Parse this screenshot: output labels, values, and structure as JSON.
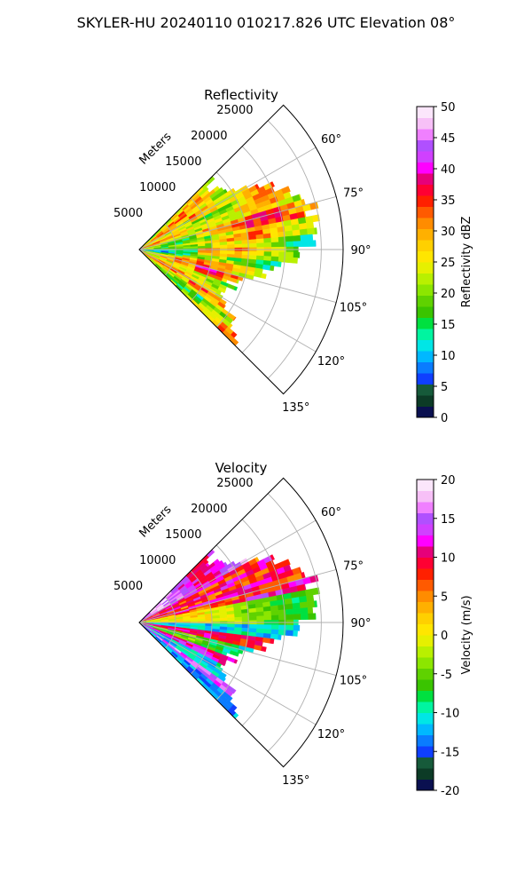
{
  "figure": {
    "suptitle": "SKYLER-HU  20240110  010217.826 UTC Elevation 08°"
  },
  "colors": {
    "reflectivity_scale": [
      "#0a1050",
      "#0c3b26",
      "#165a3a",
      "#0f3fff",
      "#0a7cff",
      "#00b8ff",
      "#00e6e6",
      "#00f5a0",
      "#00e040",
      "#3ac400",
      "#5fd200",
      "#8ce600",
      "#b9f000",
      "#e6f000",
      "#ffe600",
      "#ffd000",
      "#ffb000",
      "#ff8c00",
      "#ff5a00",
      "#ff2000",
      "#ff0033",
      "#e6007a",
      "#ff00ff",
      "#d040ff",
      "#b050ff",
      "#f080ff",
      "#f7c0f7",
      "#fbe6fb"
    ],
    "velocity_scale": [
      "#0a1050",
      "#0c3b26",
      "#165a3a",
      "#0f3fff",
      "#0a7cff",
      "#00b8ff",
      "#00e6e6",
      "#00f5a0",
      "#00e040",
      "#3ac400",
      "#5fd200",
      "#8ce600",
      "#b9f000",
      "#e6f000",
      "#ffe600",
      "#ffd000",
      "#ffb000",
      "#ff8c00",
      "#ff5a00",
      "#ff2000",
      "#ff0033",
      "#e6007a",
      "#ff00ff",
      "#d040ff",
      "#b050ff",
      "#f080ff",
      "#f7c0f7",
      "#fbe6fb"
    ],
    "grid": "#b0b0b0"
  },
  "chart_data": [
    {
      "type": "heatmap",
      "projection": "polar-sector",
      "title": "Reflectivity",
      "radial_label": "Meters",
      "radial_ticks": [
        5000,
        10000,
        15000,
        20000,
        25000
      ],
      "radial_tick_labels": [
        "5000",
        "10000",
        "15000",
        "20000",
        "25000"
      ],
      "rmax": 28000,
      "data_rmax": 25000,
      "azimuth_range_deg": [
        45,
        135
      ],
      "azimuth_ticks_deg": [
        60,
        75,
        90,
        105,
        120,
        135
      ],
      "azimuth_tick_labels": [
        "60°",
        "75°",
        "90°",
        "105°",
        "120°",
        "135°"
      ],
      "field_description": "mostly 20-30 dBZ with embedded 35-40 dBZ streaks",
      "colorbar": {
        "label": "Reflectivity dBZ",
        "range": [
          0,
          50
        ],
        "ticks": [
          0,
          5,
          10,
          15,
          20,
          25,
          30,
          35,
          40,
          45,
          50
        ],
        "tick_labels": [
          "0",
          "5",
          "10",
          "15",
          "20",
          "25",
          "30",
          "35",
          "40",
          "45",
          "50"
        ]
      }
    },
    {
      "type": "heatmap",
      "projection": "polar-sector",
      "title": "Velocity",
      "radial_label": "Meters",
      "radial_ticks": [
        5000,
        10000,
        15000,
        20000,
        25000
      ],
      "radial_tick_labels": [
        "5000",
        "10000",
        "15000",
        "20000",
        "25000"
      ],
      "rmax": 28000,
      "data_rmax": 25000,
      "azimuth_range_deg": [
        45,
        135
      ],
      "azimuth_ticks_deg": [
        60,
        75,
        90,
        105,
        120,
        135
      ],
      "azimuth_tick_labels": [
        "60°",
        "75°",
        "90°",
        "105°",
        "120°",
        "135°"
      ],
      "field_description": "positive velocities (10-18 m/s) at low azimuths, negative (-10 to -15 m/s) bands near 100-125 degrees",
      "colorbar": {
        "label": "Velocity (m/s)",
        "range": [
          -20,
          20
        ],
        "ticks": [
          -20,
          -15,
          -10,
          -5,
          0,
          5,
          10,
          15,
          20
        ],
        "tick_labels": [
          "-20",
          "-15",
          "-10",
          "-5",
          "0",
          "5",
          "10",
          "15",
          "20"
        ]
      }
    }
  ]
}
